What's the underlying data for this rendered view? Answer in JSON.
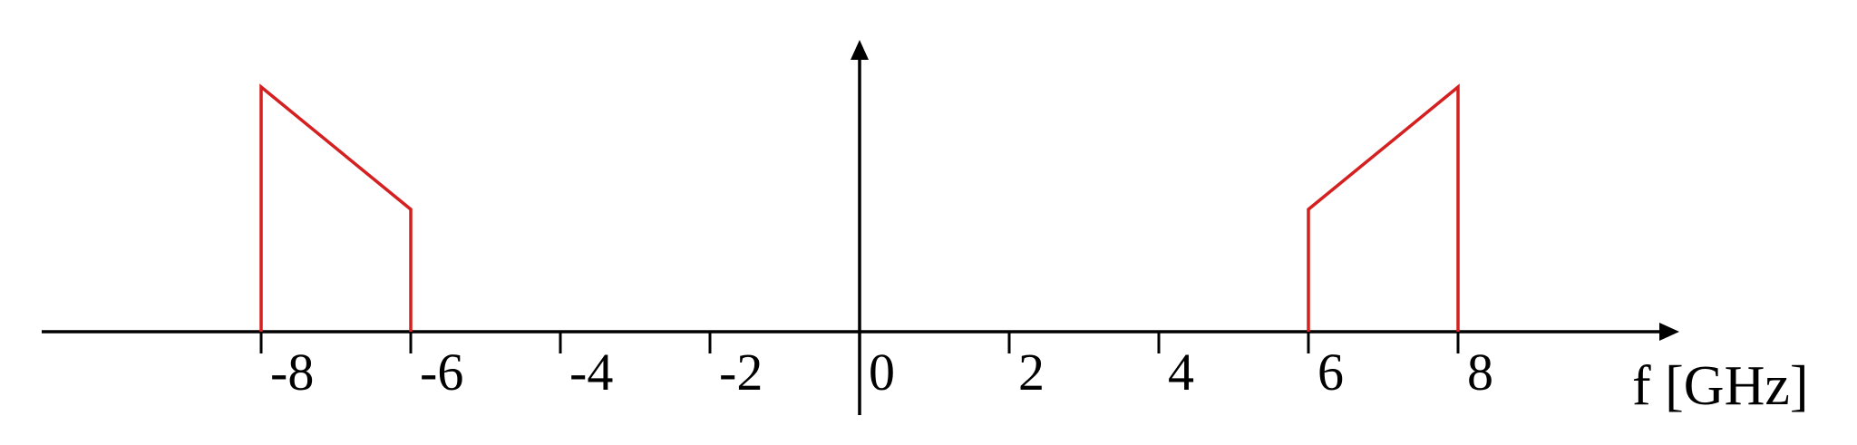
{
  "chart_data": {
    "type": "line",
    "title": "",
    "xlabel": "f [GHz]",
    "ylabel": "",
    "xlim": [
      -13.5,
      13.5
    ],
    "ylim": [
      0,
      1.25
    ],
    "x_ticks": [
      -8,
      -6,
      -4,
      -2,
      0,
      2,
      4,
      6,
      8
    ],
    "tick_labels": [
      "-8",
      "-6",
      "-4",
      "-2",
      "0",
      "2",
      "4",
      "6",
      "8"
    ],
    "grid": false,
    "legend": "none",
    "series": [
      {
        "color": "#d42020",
        "x": [
          -8,
          -8,
          -6,
          -6
        ],
        "y": [
          0,
          1,
          0.5,
          0
        ]
      },
      {
        "color": "#d42020",
        "x": [
          6,
          6,
          8,
          8
        ],
        "y": [
          0,
          0.5,
          1,
          0
        ]
      }
    ]
  }
}
